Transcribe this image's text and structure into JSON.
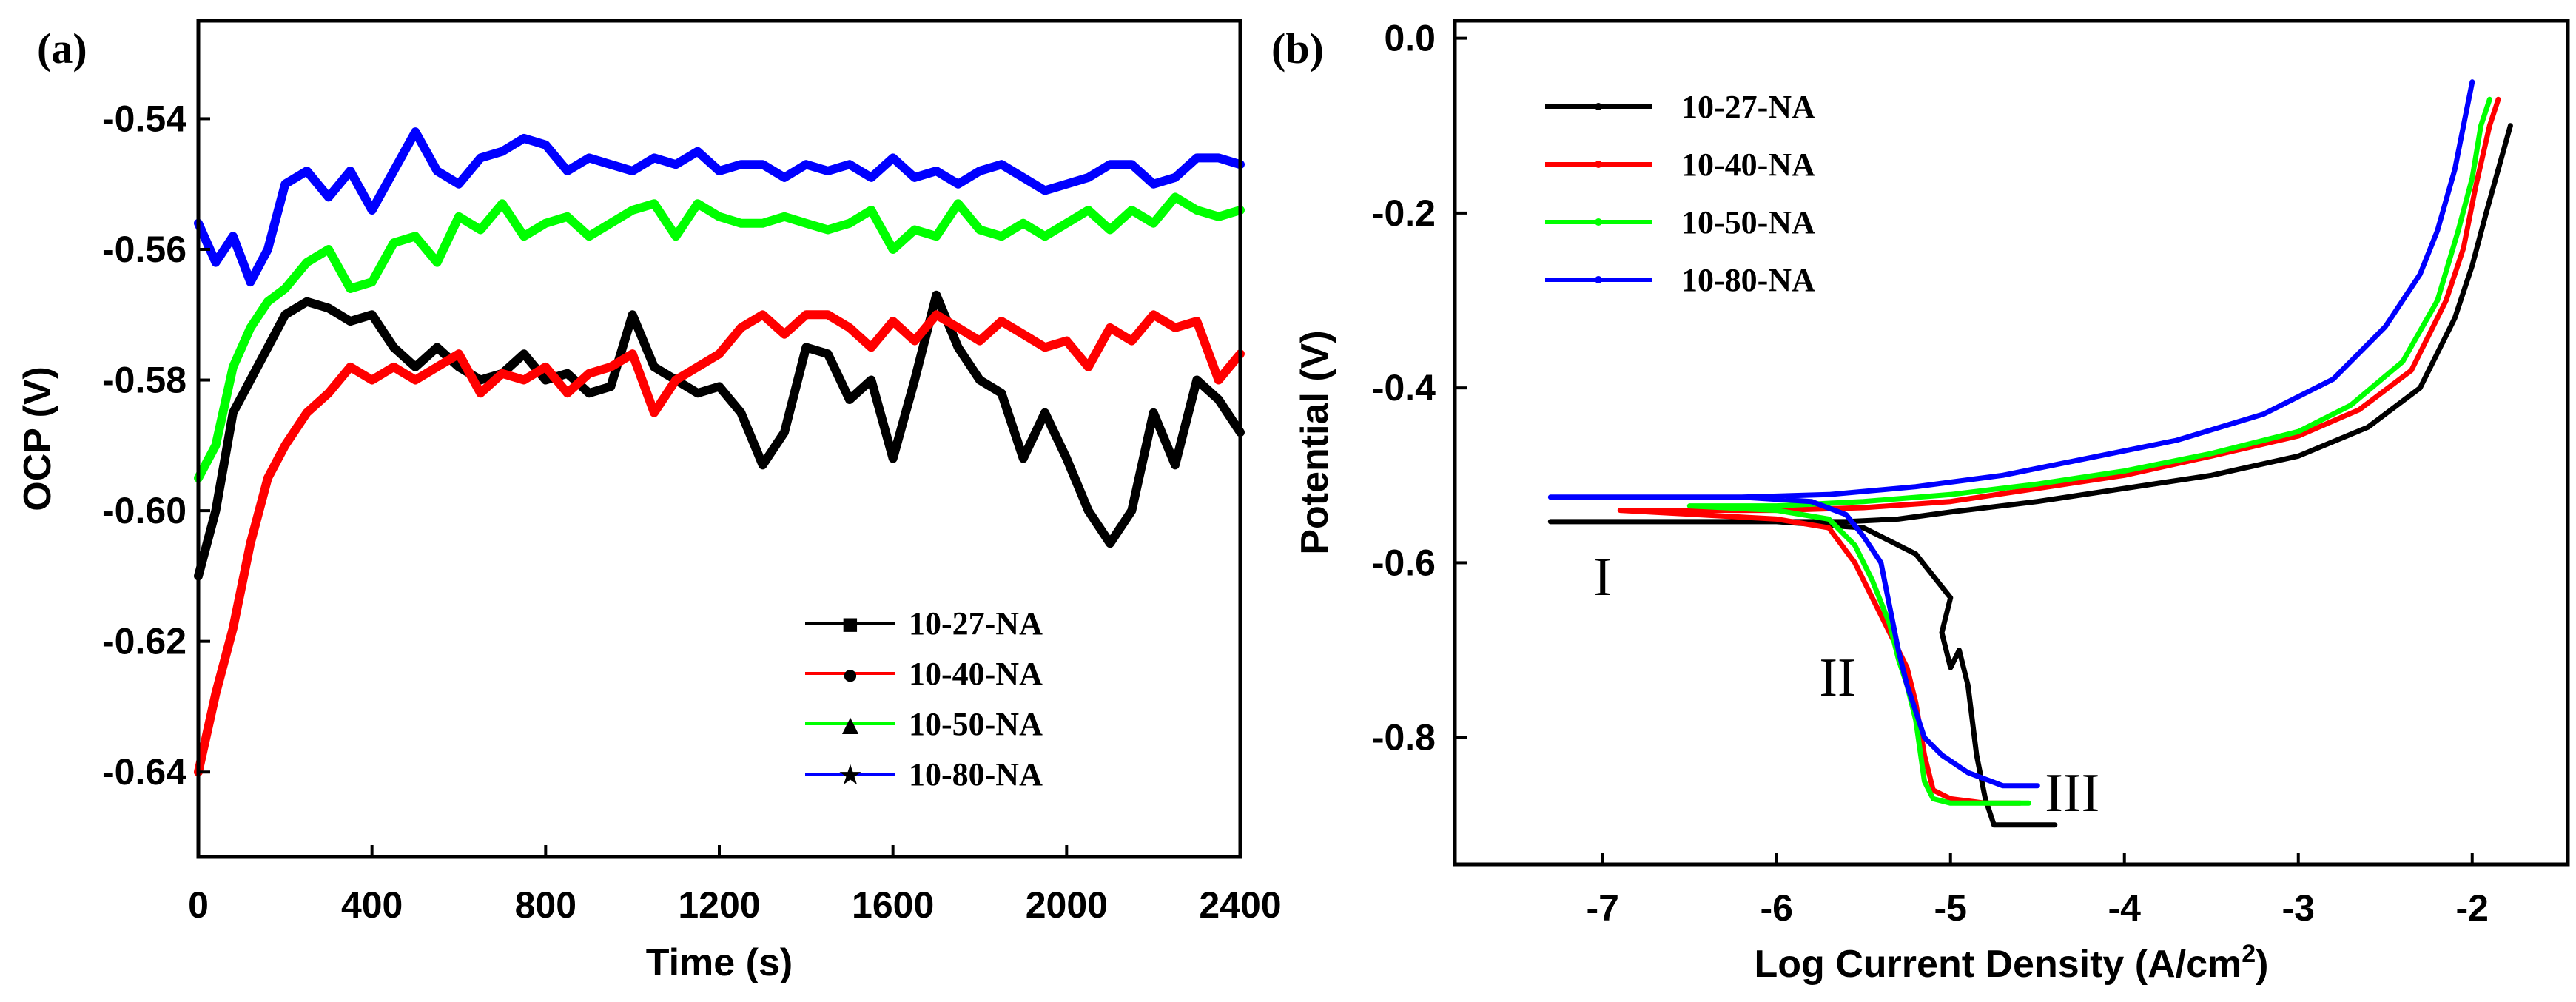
{
  "chart_data": [
    {
      "panel": "(a)",
      "type": "line",
      "xlabel": "Time (s)",
      "ylabel": "OCP (V)",
      "xlim": [
        0,
        2400
      ],
      "ylim": [
        -0.653,
        -0.525
      ],
      "xticks": [
        0,
        400,
        800,
        1200,
        1600,
        2000,
        2400
      ],
      "xtick_labels": [
        "0",
        "400",
        "800",
        "1200",
        "1600",
        "2000",
        "2400"
      ],
      "yticks": [
        -0.54,
        -0.56,
        -0.58,
        -0.6,
        -0.62,
        -0.64
      ],
      "ytick_labels": [
        "-0.54",
        "-0.56",
        "-0.58",
        "-0.60",
        "-0.62",
        "-0.64"
      ],
      "legend_position": "lower-right",
      "series": [
        {
          "name": "10-27-NA",
          "color": "#000000",
          "marker": "■",
          "x": [
            0,
            40,
            80,
            120,
            160,
            200,
            250,
            300,
            350,
            400,
            450,
            500,
            550,
            600,
            650,
            700,
            750,
            800,
            850,
            900,
            950,
            1000,
            1050,
            1100,
            1150,
            1200,
            1250,
            1300,
            1350,
            1400,
            1450,
            1500,
            1550,
            1600,
            1650,
            1700,
            1750,
            1800,
            1850,
            1900,
            1950,
            2000,
            2050,
            2100,
            2150,
            2200,
            2250,
            2300,
            2350,
            2400
          ],
          "y": [
            -0.61,
            -0.6,
            -0.585,
            -0.58,
            -0.575,
            -0.57,
            -0.568,
            -0.569,
            -0.571,
            -0.57,
            -0.575,
            -0.578,
            -0.575,
            -0.578,
            -0.58,
            -0.579,
            -0.576,
            -0.58,
            -0.579,
            -0.582,
            -0.581,
            -0.57,
            -0.578,
            -0.58,
            -0.582,
            -0.581,
            -0.585,
            -0.593,
            -0.588,
            -0.575,
            -0.576,
            -0.583,
            -0.58,
            -0.592,
            -0.58,
            -0.567,
            -0.575,
            -0.58,
            -0.582,
            -0.592,
            -0.585,
            -0.592,
            -0.6,
            -0.605,
            -0.6,
            -0.585,
            -0.593,
            -0.58,
            -0.583,
            -0.588
          ]
        },
        {
          "name": "10-40-NA",
          "color": "#ff0000",
          "marker": "●",
          "x": [
            0,
            40,
            80,
            120,
            160,
            200,
            250,
            300,
            350,
            400,
            450,
            500,
            550,
            600,
            650,
            700,
            750,
            800,
            850,
            900,
            950,
            1000,
            1050,
            1100,
            1150,
            1200,
            1250,
            1300,
            1350,
            1400,
            1450,
            1500,
            1550,
            1600,
            1650,
            1700,
            1750,
            1800,
            1850,
            1900,
            1950,
            2000,
            2050,
            2100,
            2150,
            2200,
            2250,
            2300,
            2350,
            2400
          ],
          "y": [
            -0.64,
            -0.628,
            -0.618,
            -0.605,
            -0.595,
            -0.59,
            -0.585,
            -0.582,
            -0.578,
            -0.58,
            -0.578,
            -0.58,
            -0.578,
            -0.576,
            -0.582,
            -0.579,
            -0.58,
            -0.578,
            -0.582,
            -0.579,
            -0.578,
            -0.576,
            -0.585,
            -0.58,
            -0.578,
            -0.576,
            -0.572,
            -0.57,
            -0.573,
            -0.57,
            -0.57,
            -0.572,
            -0.575,
            -0.571,
            -0.574,
            -0.57,
            -0.572,
            -0.574,
            -0.571,
            -0.573,
            -0.575,
            -0.574,
            -0.578,
            -0.572,
            -0.574,
            -0.57,
            -0.572,
            -0.571,
            -0.58,
            -0.576
          ]
        },
        {
          "name": "10-50-NA",
          "color": "#00ff00",
          "marker": "▲",
          "x": [
            0,
            40,
            80,
            120,
            160,
            200,
            250,
            300,
            350,
            400,
            450,
            500,
            550,
            600,
            650,
            700,
            750,
            800,
            850,
            900,
            950,
            1000,
            1050,
            1100,
            1150,
            1200,
            1250,
            1300,
            1350,
            1400,
            1450,
            1500,
            1550,
            1600,
            1650,
            1700,
            1750,
            1800,
            1850,
            1900,
            1950,
            2000,
            2050,
            2100,
            2150,
            2200,
            2250,
            2300,
            2350,
            2400
          ],
          "y": [
            -0.595,
            -0.59,
            -0.578,
            -0.572,
            -0.568,
            -0.566,
            -0.562,
            -0.56,
            -0.566,
            -0.565,
            -0.559,
            -0.558,
            -0.562,
            -0.555,
            -0.557,
            -0.553,
            -0.558,
            -0.556,
            -0.555,
            -0.558,
            -0.556,
            -0.554,
            -0.553,
            -0.558,
            -0.553,
            -0.555,
            -0.556,
            -0.556,
            -0.555,
            -0.556,
            -0.557,
            -0.556,
            -0.554,
            -0.56,
            -0.557,
            -0.558,
            -0.553,
            -0.557,
            -0.558,
            -0.556,
            -0.558,
            -0.556,
            -0.554,
            -0.557,
            -0.554,
            -0.556,
            -0.552,
            -0.554,
            -0.555,
            -0.554
          ]
        },
        {
          "name": "10-80-NA",
          "color": "#0000ff",
          "marker": "★",
          "x": [
            0,
            40,
            80,
            120,
            160,
            200,
            250,
            300,
            350,
            400,
            450,
            500,
            550,
            600,
            650,
            700,
            750,
            800,
            850,
            900,
            950,
            1000,
            1050,
            1100,
            1150,
            1200,
            1250,
            1300,
            1350,
            1400,
            1450,
            1500,
            1550,
            1600,
            1650,
            1700,
            1750,
            1800,
            1850,
            1900,
            1950,
            2000,
            2050,
            2100,
            2150,
            2200,
            2250,
            2300,
            2350,
            2400
          ],
          "y": [
            -0.556,
            -0.562,
            -0.558,
            -0.565,
            -0.56,
            -0.55,
            -0.548,
            -0.552,
            -0.548,
            -0.554,
            -0.548,
            -0.542,
            -0.548,
            -0.55,
            -0.546,
            -0.545,
            -0.543,
            -0.544,
            -0.548,
            -0.546,
            -0.547,
            -0.548,
            -0.546,
            -0.547,
            -0.545,
            -0.548,
            -0.547,
            -0.547,
            -0.549,
            -0.547,
            -0.548,
            -0.547,
            -0.549,
            -0.546,
            -0.549,
            -0.548,
            -0.55,
            -0.548,
            -0.547,
            -0.549,
            -0.551,
            -0.55,
            -0.549,
            -0.547,
            -0.547,
            -0.55,
            -0.549,
            -0.546,
            -0.546,
            -0.547
          ]
        }
      ]
    },
    {
      "panel": "(b)",
      "type": "line",
      "xlabel": "Log Current Density (A/cm",
      "xlabel_sup": "2",
      "xlabel_end": ")",
      "ylabel": "Potential (V)",
      "xlim": [
        -7.85,
        -1.45
      ],
      "ylim": [
        -0.945,
        0.02
      ],
      "xticks": [
        -7,
        -6,
        -5,
        -4,
        -3,
        -2
      ],
      "xtick_labels": [
        "-7",
        "-6",
        "-5",
        "-4",
        "-3",
        "-2"
      ],
      "yticks": [
        0.0,
        -0.2,
        -0.4,
        -0.6,
        -0.8
      ],
      "ytick_labels": [
        "0.0",
        "-0.2",
        "-0.4",
        "-0.6",
        "-0.8"
      ],
      "legend_position": "top-left",
      "annotations": [
        {
          "text": "I",
          "x": -7.0,
          "y": -0.615
        },
        {
          "text": "II",
          "x": -5.65,
          "y": -0.73
        },
        {
          "text": "III",
          "x": -4.3,
          "y": -0.862
        }
      ],
      "series": [
        {
          "name": "10-27-NA",
          "color": "#000000",
          "x": [
            -1.78,
            -1.85,
            -1.92,
            -2.0,
            -2.1,
            -2.3,
            -2.6,
            -3.0,
            -3.5,
            -4.0,
            -4.5,
            -5.0,
            -5.3,
            -5.6,
            -6.0,
            -6.5,
            -7.0,
            -7.3,
            -6.0,
            -5.5,
            -5.2,
            -5.0,
            -5.05,
            -5.0,
            -4.95,
            -4.9,
            -4.85,
            -4.8,
            -4.75,
            -4.6,
            -4.4
          ],
          "y": [
            -0.1,
            -0.15,
            -0.2,
            -0.26,
            -0.32,
            -0.4,
            -0.445,
            -0.478,
            -0.5,
            -0.515,
            -0.53,
            -0.542,
            -0.55,
            -0.553,
            -0.553,
            -0.553,
            -0.553,
            -0.553,
            -0.553,
            -0.56,
            -0.59,
            -0.64,
            -0.68,
            -0.72,
            -0.7,
            -0.74,
            -0.82,
            -0.87,
            -0.9,
            -0.9,
            -0.9
          ]
        },
        {
          "name": "10-40-NA",
          "color": "#ff0000",
          "x": [
            -1.85,
            -1.9,
            -1.98,
            -2.05,
            -2.15,
            -2.35,
            -2.65,
            -3.0,
            -3.5,
            -4.0,
            -4.5,
            -5.0,
            -5.5,
            -6.0,
            -6.5,
            -6.9,
            -6.0,
            -5.7,
            -5.55,
            -5.45,
            -5.35,
            -5.25,
            -5.2,
            -5.15,
            -5.1,
            -5.0,
            -4.8,
            -4.6
          ],
          "y": [
            -0.07,
            -0.1,
            -0.17,
            -0.24,
            -0.3,
            -0.38,
            -0.425,
            -0.455,
            -0.478,
            -0.5,
            -0.515,
            -0.53,
            -0.537,
            -0.54,
            -0.54,
            -0.54,
            -0.55,
            -0.56,
            -0.6,
            -0.64,
            -0.68,
            -0.72,
            -0.76,
            -0.82,
            -0.86,
            -0.87,
            -0.875,
            -0.875
          ]
        },
        {
          "name": "10-50-NA",
          "color": "#00ff00",
          "x": [
            -1.9,
            -1.95,
            -2.0,
            -2.08,
            -2.2,
            -2.4,
            -2.7,
            -3.0,
            -3.5,
            -4.0,
            -4.5,
            -5.0,
            -5.5,
            -6.0,
            -6.5,
            -6.0,
            -5.7,
            -5.55,
            -5.45,
            -5.35,
            -5.3,
            -5.25,
            -5.2,
            -5.15,
            -5.1,
            -5.0,
            -4.8,
            -4.55
          ],
          "y": [
            -0.07,
            -0.1,
            -0.16,
            -0.22,
            -0.3,
            -0.37,
            -0.42,
            -0.45,
            -0.475,
            -0.495,
            -0.51,
            -0.522,
            -0.53,
            -0.535,
            -0.535,
            -0.54,
            -0.55,
            -0.58,
            -0.62,
            -0.67,
            -0.71,
            -0.74,
            -0.78,
            -0.85,
            -0.87,
            -0.875,
            -0.875,
            -0.875
          ]
        },
        {
          "name": "10-80-NA",
          "color": "#0000ff",
          "x": [
            -2.0,
            -2.05,
            -2.1,
            -2.2,
            -2.3,
            -2.5,
            -2.8,
            -3.2,
            -3.7,
            -4.2,
            -4.7,
            -5.2,
            -5.7,
            -6.2,
            -6.7,
            -7.3,
            -6.2,
            -5.8,
            -5.6,
            -5.5,
            -5.4,
            -5.35,
            -5.3,
            -5.25,
            -5.2,
            -5.15,
            -5.05,
            -4.9,
            -4.7,
            -4.5
          ],
          "y": [
            -0.05,
            -0.1,
            -0.15,
            -0.22,
            -0.27,
            -0.33,
            -0.39,
            -0.43,
            -0.46,
            -0.48,
            -0.5,
            -0.513,
            -0.522,
            -0.525,
            -0.525,
            -0.525,
            -0.525,
            -0.53,
            -0.545,
            -0.57,
            -0.6,
            -0.65,
            -0.7,
            -0.74,
            -0.77,
            -0.8,
            -0.82,
            -0.84,
            -0.855,
            -0.855
          ]
        }
      ]
    }
  ]
}
